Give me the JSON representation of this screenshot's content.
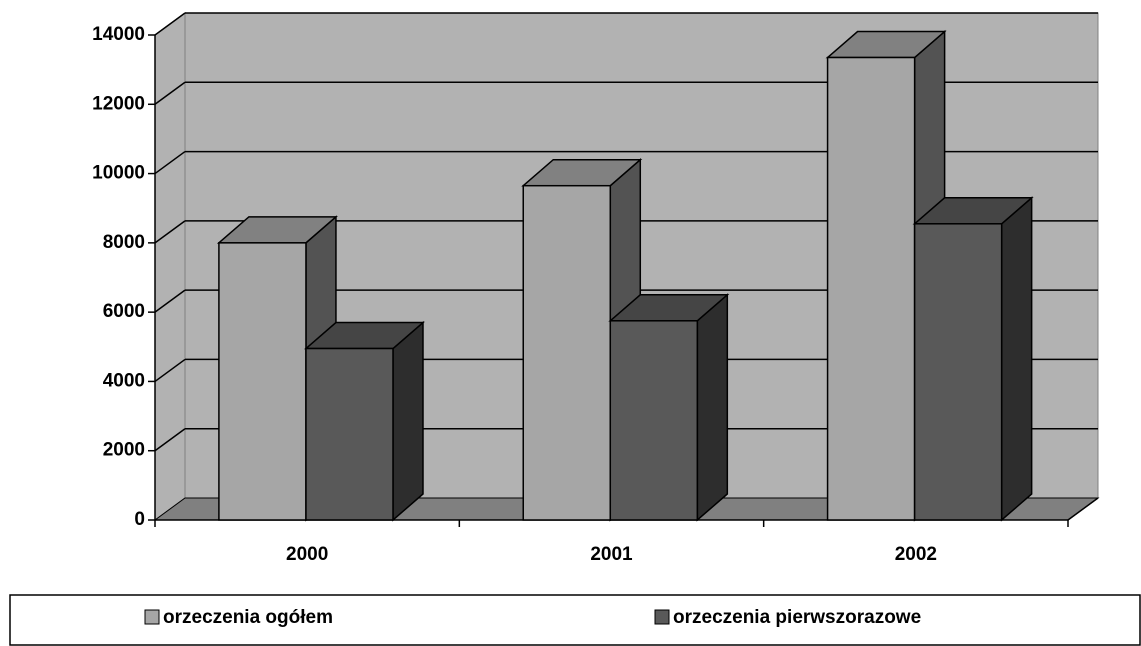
{
  "chart_data": {
    "type": "bar3d",
    "categories": [
      "2000",
      "2001",
      "2002"
    ],
    "series": [
      {
        "name": "orzeczenia ogółem",
        "color": "#a6a6a6",
        "values": [
          8000,
          9650,
          13350
        ]
      },
      {
        "name": "orzeczenia pierwszorazowe",
        "color": "#595959",
        "values": [
          4950,
          5750,
          8550
        ]
      }
    ],
    "ylim": [
      0,
      14000
    ],
    "yticks": [
      0,
      2000,
      4000,
      6000,
      8000,
      10000,
      12000,
      14000
    ],
    "grid": true,
    "legend": "bottom"
  }
}
